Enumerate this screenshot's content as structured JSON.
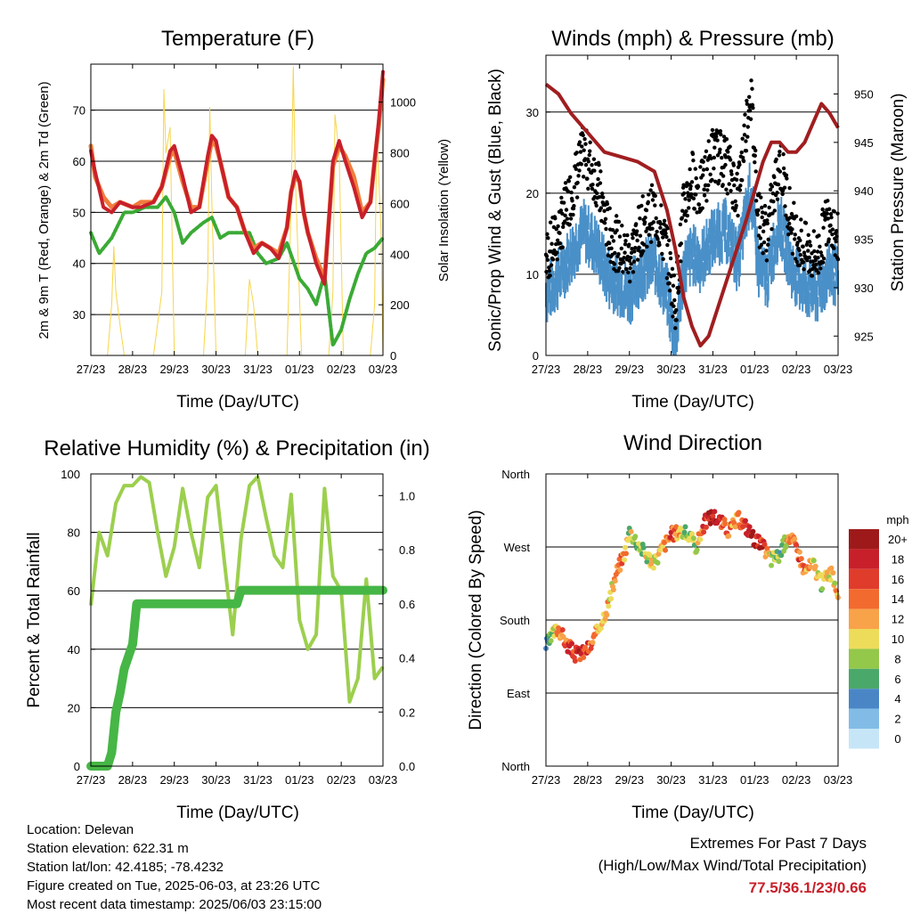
{
  "info": {
    "location": "Location: Delevan",
    "elevation": "Station elevation: 622.31 m",
    "latlon": "Station lat/lon: 42.4185; -78.4232",
    "created": "Figure created on Tue, 2025-06-03, at 23:26 UTC",
    "latest": "Most recent data timestamp: 2025/06/03 23:15:00"
  },
  "extremes": {
    "heading": "Extremes For Past 7 Days",
    "subheading": "(High/Low/Max Wind/Total Precipitation)",
    "values": "77.5/36.1/23/0.66"
  },
  "x_ticks": [
    "27/23",
    "28/23",
    "29/23",
    "30/23",
    "31/23",
    "01/23",
    "02/23",
    "03/23"
  ],
  "x_axis_title": "Time (Day/UTC)",
  "colors": {
    "temp_2m": "#c8202a",
    "temp_9m": "#f07c3c",
    "dewpoint": "#3aaa35",
    "solar": "#f7d54a",
    "wind": "#4a90c8",
    "gust": "#000000",
    "pressure": "#a01e20",
    "rh": "#9ccf4e",
    "precip": "#46b646"
  },
  "chart_data": [
    {
      "type": "line",
      "title": "Temperature (F)",
      "xlabel": "Time (Day/UTC)",
      "ylabel": "2m & 9m T (Red, Orange) & 2m Td (Green)",
      "ylabel_right": "Solar Insolation (Yellow)",
      "x_range": [
        0,
        7
      ],
      "ylim": [
        22,
        79
      ],
      "ylim_right": [
        0,
        1150
      ],
      "yticks": [
        30,
        40,
        50,
        60,
        70
      ],
      "yticks_right": [
        0,
        200,
        400,
        600,
        800,
        1000
      ],
      "series": [
        {
          "role": "temp_2m",
          "x": [
            0,
            0.1,
            0.3,
            0.5,
            0.7,
            1,
            1.2,
            1.5,
            1.7,
            1.9,
            2,
            2.2,
            2.4,
            2.6,
            2.8,
            2.9,
            3,
            3.1,
            3.3,
            3.5,
            3.7,
            3.9,
            4.1,
            4.3,
            4.5,
            4.7,
            4.8,
            4.9,
            5,
            5.1,
            5.2,
            5.4,
            5.6,
            5.8,
            5.95,
            6.1,
            6.3,
            6.5,
            6.7,
            6.8,
            6.9,
            7
          ],
          "y": [
            62,
            58,
            51,
            50,
            52,
            51,
            51,
            52,
            55,
            62,
            63,
            57,
            50,
            51,
            61,
            65,
            64,
            60,
            53,
            51,
            46,
            42,
            44,
            43,
            41,
            47,
            54,
            58,
            56,
            50,
            46,
            40,
            36,
            60,
            64,
            60,
            55,
            49,
            52,
            60,
            68,
            77.5
          ]
        },
        {
          "role": "temp_9m",
          "x": [
            0,
            0.1,
            0.3,
            0.5,
            0.7,
            1,
            1.2,
            1.5,
            1.7,
            1.9,
            2,
            2.2,
            2.4,
            2.6,
            2.8,
            2.9,
            3,
            3.1,
            3.3,
            3.5,
            3.7,
            3.9,
            4.1,
            4.3,
            4.5,
            4.7,
            4.8,
            4.9,
            5,
            5.1,
            5.2,
            5.4,
            5.6,
            5.8,
            5.95,
            6.1,
            6.3,
            6.5,
            6.7,
            6.8,
            6.9,
            7
          ],
          "y": [
            63,
            57,
            53,
            51,
            52,
            51,
            52,
            52,
            55,
            61,
            62,
            56,
            51,
            51,
            60,
            64,
            63,
            60,
            53,
            51,
            46,
            43,
            44,
            43,
            42,
            47,
            54,
            57,
            56,
            50,
            46,
            41,
            37,
            59,
            63,
            61,
            57,
            50,
            52,
            60,
            67,
            76
          ]
        },
        {
          "role": "dewpoint",
          "x": [
            0,
            0.2,
            0.5,
            0.8,
            1,
            1.3,
            1.6,
            1.8,
            2,
            2.2,
            2.4,
            2.7,
            2.9,
            3.1,
            3.3,
            3.5,
            3.8,
            4,
            4.2,
            4.5,
            4.7,
            5,
            5.2,
            5.4,
            5.6,
            5.8,
            6,
            6.2,
            6.4,
            6.6,
            6.8,
            7
          ],
          "y": [
            46,
            42,
            45,
            50,
            50,
            51,
            51,
            53,
            50,
            44,
            46,
            48,
            49,
            45,
            46,
            46,
            46,
            42,
            40,
            41,
            44,
            37,
            35,
            32,
            38,
            24,
            27,
            33,
            38,
            42,
            43,
            45
          ]
        },
        {
          "role": "solar",
          "x": [
            0,
            0.4,
            0.5,
            0.55,
            0.6,
            0.7,
            0.8,
            1,
            1.3,
            1.5,
            1.7,
            1.75,
            1.8,
            1.9,
            2,
            2.3,
            2.7,
            2.8,
            2.85,
            2.9,
            3,
            3.3,
            3.7,
            3.8,
            3.9,
            4,
            4.3,
            4.7,
            4.8,
            4.85,
            4.9,
            5.05,
            5.3,
            5.7,
            5.8,
            5.85,
            5.95,
            6.05,
            6.3,
            6.7,
            6.8,
            6.85,
            6.95,
            7
          ],
          "y": [
            0,
            0,
            200,
            430,
            250,
            120,
            0,
            0,
            0,
            0,
            250,
            1050,
            800,
            900,
            0,
            0,
            0,
            300,
            980,
            600,
            0,
            0,
            0,
            300,
            200,
            0,
            0,
            0,
            600,
            1140,
            700,
            0,
            0,
            0,
            250,
            950,
            800,
            0,
            0,
            0,
            200,
            900,
            500,
            0
          ]
        }
      ]
    },
    {
      "type": "line",
      "title": "Winds (mph) & Pressure (mb)",
      "xlabel": "Time (Day/UTC)",
      "ylabel": "Sonic/Prop Wind & Gust (Blue, Black)",
      "ylabel_right": "Station Pressure (Maroon)",
      "x_range": [
        0,
        7
      ],
      "ylim": [
        0,
        37
      ],
      "ylim_right": [
        923,
        954
      ],
      "yticks": [
        0,
        10,
        20,
        30
      ],
      "yticks_right": [
        925,
        930,
        935,
        940,
        945,
        950
      ],
      "series": [
        {
          "role": "wind",
          "x": [
            0,
            0.3,
            0.6,
            0.9,
            1.2,
            1.5,
            1.8,
            2,
            2.3,
            2.6,
            2.9,
            3.1,
            3.3,
            3.5,
            3.7,
            4,
            4.3,
            4.6,
            4.9,
            5.1,
            5.3,
            5.6,
            5.9,
            6.2,
            6.5,
            6.8,
            7
          ],
          "y": [
            9,
            11,
            14,
            17,
            15,
            11,
            10,
            9,
            12,
            13,
            9,
            3,
            12,
            14,
            13,
            16,
            17,
            13,
            22,
            12,
            11,
            18,
            12,
            10,
            9,
            12,
            11
          ]
        },
        {
          "role": "gust",
          "x": [
            0,
            0.3,
            0.6,
            0.9,
            1.2,
            1.5,
            1.8,
            2,
            2.3,
            2.6,
            2.9,
            3.1,
            3.3,
            3.5,
            3.7,
            4,
            4.3,
            4.6,
            4.9,
            5.1,
            5.3,
            5.6,
            5.9,
            6.2,
            6.5,
            6.8,
            7
          ],
          "y": [
            12,
            15,
            20,
            25,
            22,
            15,
            13,
            12,
            16,
            18,
            13,
            6,
            18,
            22,
            20,
            25,
            24,
            20,
            33,
            17,
            15,
            24,
            16,
            13,
            12,
            18,
            14
          ]
        },
        {
          "role": "pressure",
          "x": [
            0,
            0.3,
            0.6,
            1,
            1.4,
            1.8,
            2.2,
            2.6,
            2.9,
            3.1,
            3.3,
            3.5,
            3.7,
            3.9,
            4.2,
            4.5,
            4.8,
            5,
            5.2,
            5.4,
            5.6,
            5.8,
            6,
            6.2,
            6.4,
            6.6,
            6.8,
            7
          ],
          "y": [
            951,
            950,
            948,
            946,
            944,
            943.5,
            943,
            942,
            938,
            934,
            929,
            926,
            924,
            925,
            929,
            933,
            937,
            940,
            943,
            945,
            945,
            944,
            944,
            945,
            947,
            949,
            948,
            946.5
          ]
        }
      ]
    },
    {
      "type": "line",
      "title": "Relative Humidity (%) & Precipitation (in)",
      "xlabel": "Time (Day/UTC)",
      "ylabel": "Percent & Total Rainfall",
      "x_range": [
        0,
        7
      ],
      "ylim": [
        0,
        100
      ],
      "ylim_right": [
        0,
        1.08
      ],
      "yticks": [
        0,
        20,
        40,
        60,
        80,
        100
      ],
      "yticks_right": [
        0.0,
        0.2,
        0.4,
        0.6,
        0.8,
        1.0
      ],
      "series": [
        {
          "role": "rh",
          "x": [
            0,
            0.2,
            0.4,
            0.6,
            0.8,
            1,
            1.2,
            1.4,
            1.6,
            1.8,
            2,
            2.2,
            2.4,
            2.6,
            2.8,
            3,
            3.2,
            3.4,
            3.6,
            3.8,
            4,
            4.2,
            4.4,
            4.6,
            4.8,
            5,
            5.2,
            5.4,
            5.6,
            5.8,
            6,
            6.2,
            6.4,
            6.6,
            6.8,
            7
          ],
          "y": [
            55,
            80,
            72,
            90,
            96,
            96,
            99,
            97,
            80,
            65,
            75,
            95,
            80,
            68,
            92,
            96,
            70,
            45,
            78,
            96,
            99,
            85,
            72,
            68,
            93,
            50,
            40,
            45,
            95,
            65,
            60,
            22,
            30,
            64,
            30,
            34
          ]
        },
        {
          "role": "precip",
          "x": [
            0,
            0.2,
            0.4,
            0.5,
            0.6,
            0.7,
            0.8,
            1,
            1.1,
            1.2,
            1.3,
            2,
            3,
            3.5,
            3.6,
            4,
            5,
            6,
            7
          ],
          "y": [
            0,
            0,
            0,
            0.05,
            0.2,
            0.27,
            0.36,
            0.45,
            0.6,
            0.6,
            0.6,
            0.6,
            0.6,
            0.6,
            0.65,
            0.65,
            0.65,
            0.65,
            0.65
          ]
        }
      ]
    },
    {
      "type": "scatter",
      "title": "Wind Direction",
      "xlabel": "Time (Day/UTC)",
      "ylabel": "Direction (Colored By Speed)",
      "x_range": [
        0,
        7
      ],
      "y_categories": [
        "North",
        "East",
        "South",
        "West",
        "North"
      ],
      "legend": {
        "title": "mph",
        "labels": [
          "20+",
          "18",
          "16",
          "14",
          "12",
          "10",
          "8",
          "6",
          "4",
          "2",
          "0"
        ],
        "colors": [
          "#9e1a1a",
          "#c8202a",
          "#e03c2c",
          "#f26a2e",
          "#f8a24a",
          "#eddc5a",
          "#93c84a",
          "#4aa86a",
          "#4a86c6",
          "#82bce6",
          "#c6e6f7"
        ],
        "placement": "right"
      },
      "series": [
        {
          "name": "direction_deg",
          "x": [
            0,
            0.1,
            0.2,
            0.3,
            0.5,
            0.7,
            0.9,
            1.1,
            1.3,
            1.5,
            1.7,
            1.9,
            2,
            2.2,
            2.4,
            2.6,
            2.8,
            3,
            3.2,
            3.4,
            3.6,
            3.8,
            4,
            4.2,
            4.4,
            4.6,
            4.8,
            5,
            5.2,
            5.4,
            5.6,
            5.8,
            6,
            6.2,
            6.4,
            6.6,
            6.8,
            7
          ],
          "y": [
            148,
            155,
            165,
            170,
            150,
            138,
            140,
            150,
            175,
            200,
            240,
            265,
            290,
            275,
            260,
            250,
            270,
            285,
            290,
            285,
            270,
            300,
            310,
            300,
            290,
            305,
            295,
            280,
            270,
            255,
            260,
            285,
            270,
            240,
            250,
            225,
            240,
            215
          ],
          "speed": [
            6,
            8,
            12,
            14,
            16,
            18,
            17,
            15,
            14,
            12,
            13,
            14,
            10,
            9,
            10,
            10,
            14,
            16,
            12,
            9,
            10,
            18,
            20,
            16,
            14,
            12,
            18,
            20,
            18,
            10,
            8,
            12,
            16,
            14,
            12,
            10,
            12,
            12
          ]
        }
      ]
    }
  ]
}
